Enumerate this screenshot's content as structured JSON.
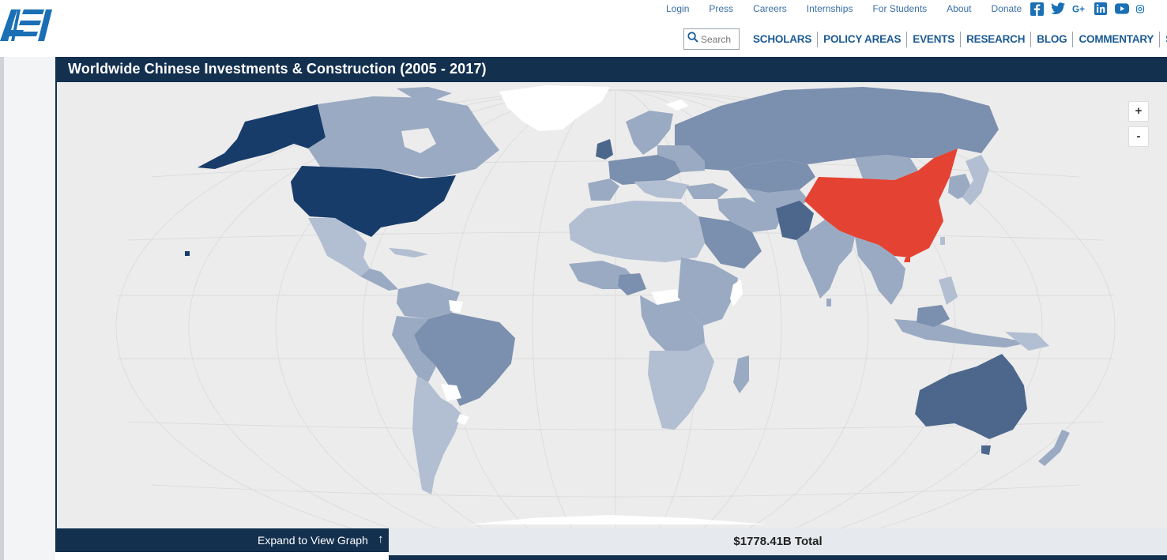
{
  "header": {
    "logo_text": "AEI",
    "utility_links": [
      "Login",
      "Press",
      "Careers",
      "Internships",
      "For Students",
      "About",
      "Donate"
    ],
    "social_icons": [
      "facebook-icon",
      "twitter-icon",
      "google-plus-icon",
      "linkedin-icon",
      "youtube-icon",
      "instagram-icon"
    ],
    "search_placeholder": "Search",
    "nav_items": [
      "SCHOLARS",
      "POLICY AREAS",
      "EVENTS",
      "RESEARCH",
      "BLOG",
      "COMMENTARY",
      "SUBS"
    ]
  },
  "map_panel": {
    "title": "Worldwide Chinese Investments & Construction (2005 - 2017)",
    "zoom_in_label": "+",
    "zoom_out_label": "-",
    "highlight_country": "China",
    "colors": {
      "highlight": "#e44232",
      "darkest": "#183c6a",
      "dark": "#4d678c",
      "medium": "#7b8fae",
      "light": "#9aaac2",
      "lightest": "#b2bed1",
      "no_data": "#ffffff",
      "ocean": "#ececec"
    }
  },
  "footer": {
    "expand_label": "Expand to View Graph",
    "expand_arrow": "↑",
    "total_label": "$1778.41B Total"
  }
}
